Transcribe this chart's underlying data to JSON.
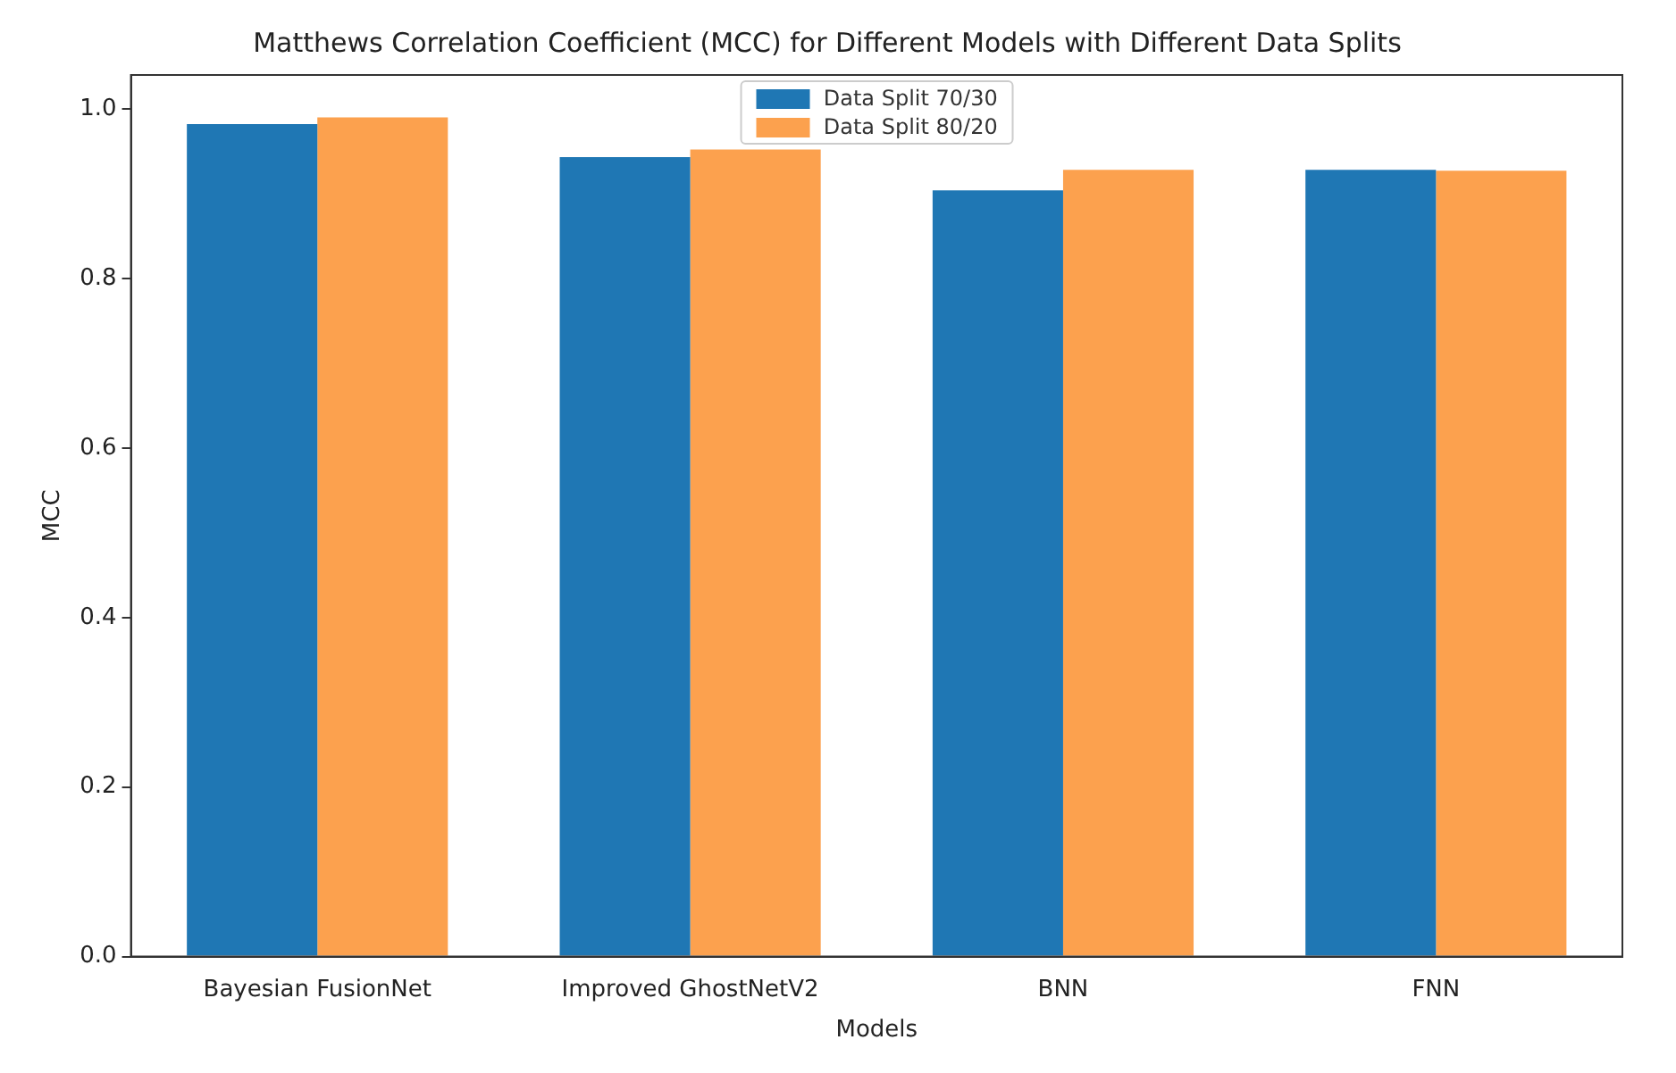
{
  "chart_data": {
    "type": "bar",
    "title": "Matthews Correlation Coefficient (MCC) for Different Models with Different Data Splits",
    "xlabel": "Models",
    "ylabel": "MCC",
    "categories": [
      "Bayesian FusionNet",
      "Improved GhostNetV2",
      "BNN",
      "FNN"
    ],
    "series": [
      {
        "name": "Data Split 70/30",
        "color": "#1f77b4",
        "values": [
          0.982,
          0.943,
          0.904,
          0.928
        ]
      },
      {
        "name": "Data Split 80/20",
        "color": "#fca14e",
        "values": [
          0.99,
          0.952,
          0.928,
          0.927
        ]
      }
    ],
    "ylim": [
      0,
      1.04
    ],
    "yticks": [
      {
        "value": 0,
        "label": "0.0"
      },
      {
        "value": 0.2,
        "label": "0.2"
      },
      {
        "value": 0.4,
        "label": "0.4"
      },
      {
        "value": 0.6,
        "label": "0.6"
      },
      {
        "value": 0.8,
        "label": "0.8"
      },
      {
        "value": 1,
        "label": "1.0"
      }
    ],
    "grid": false,
    "legend": "top"
  }
}
